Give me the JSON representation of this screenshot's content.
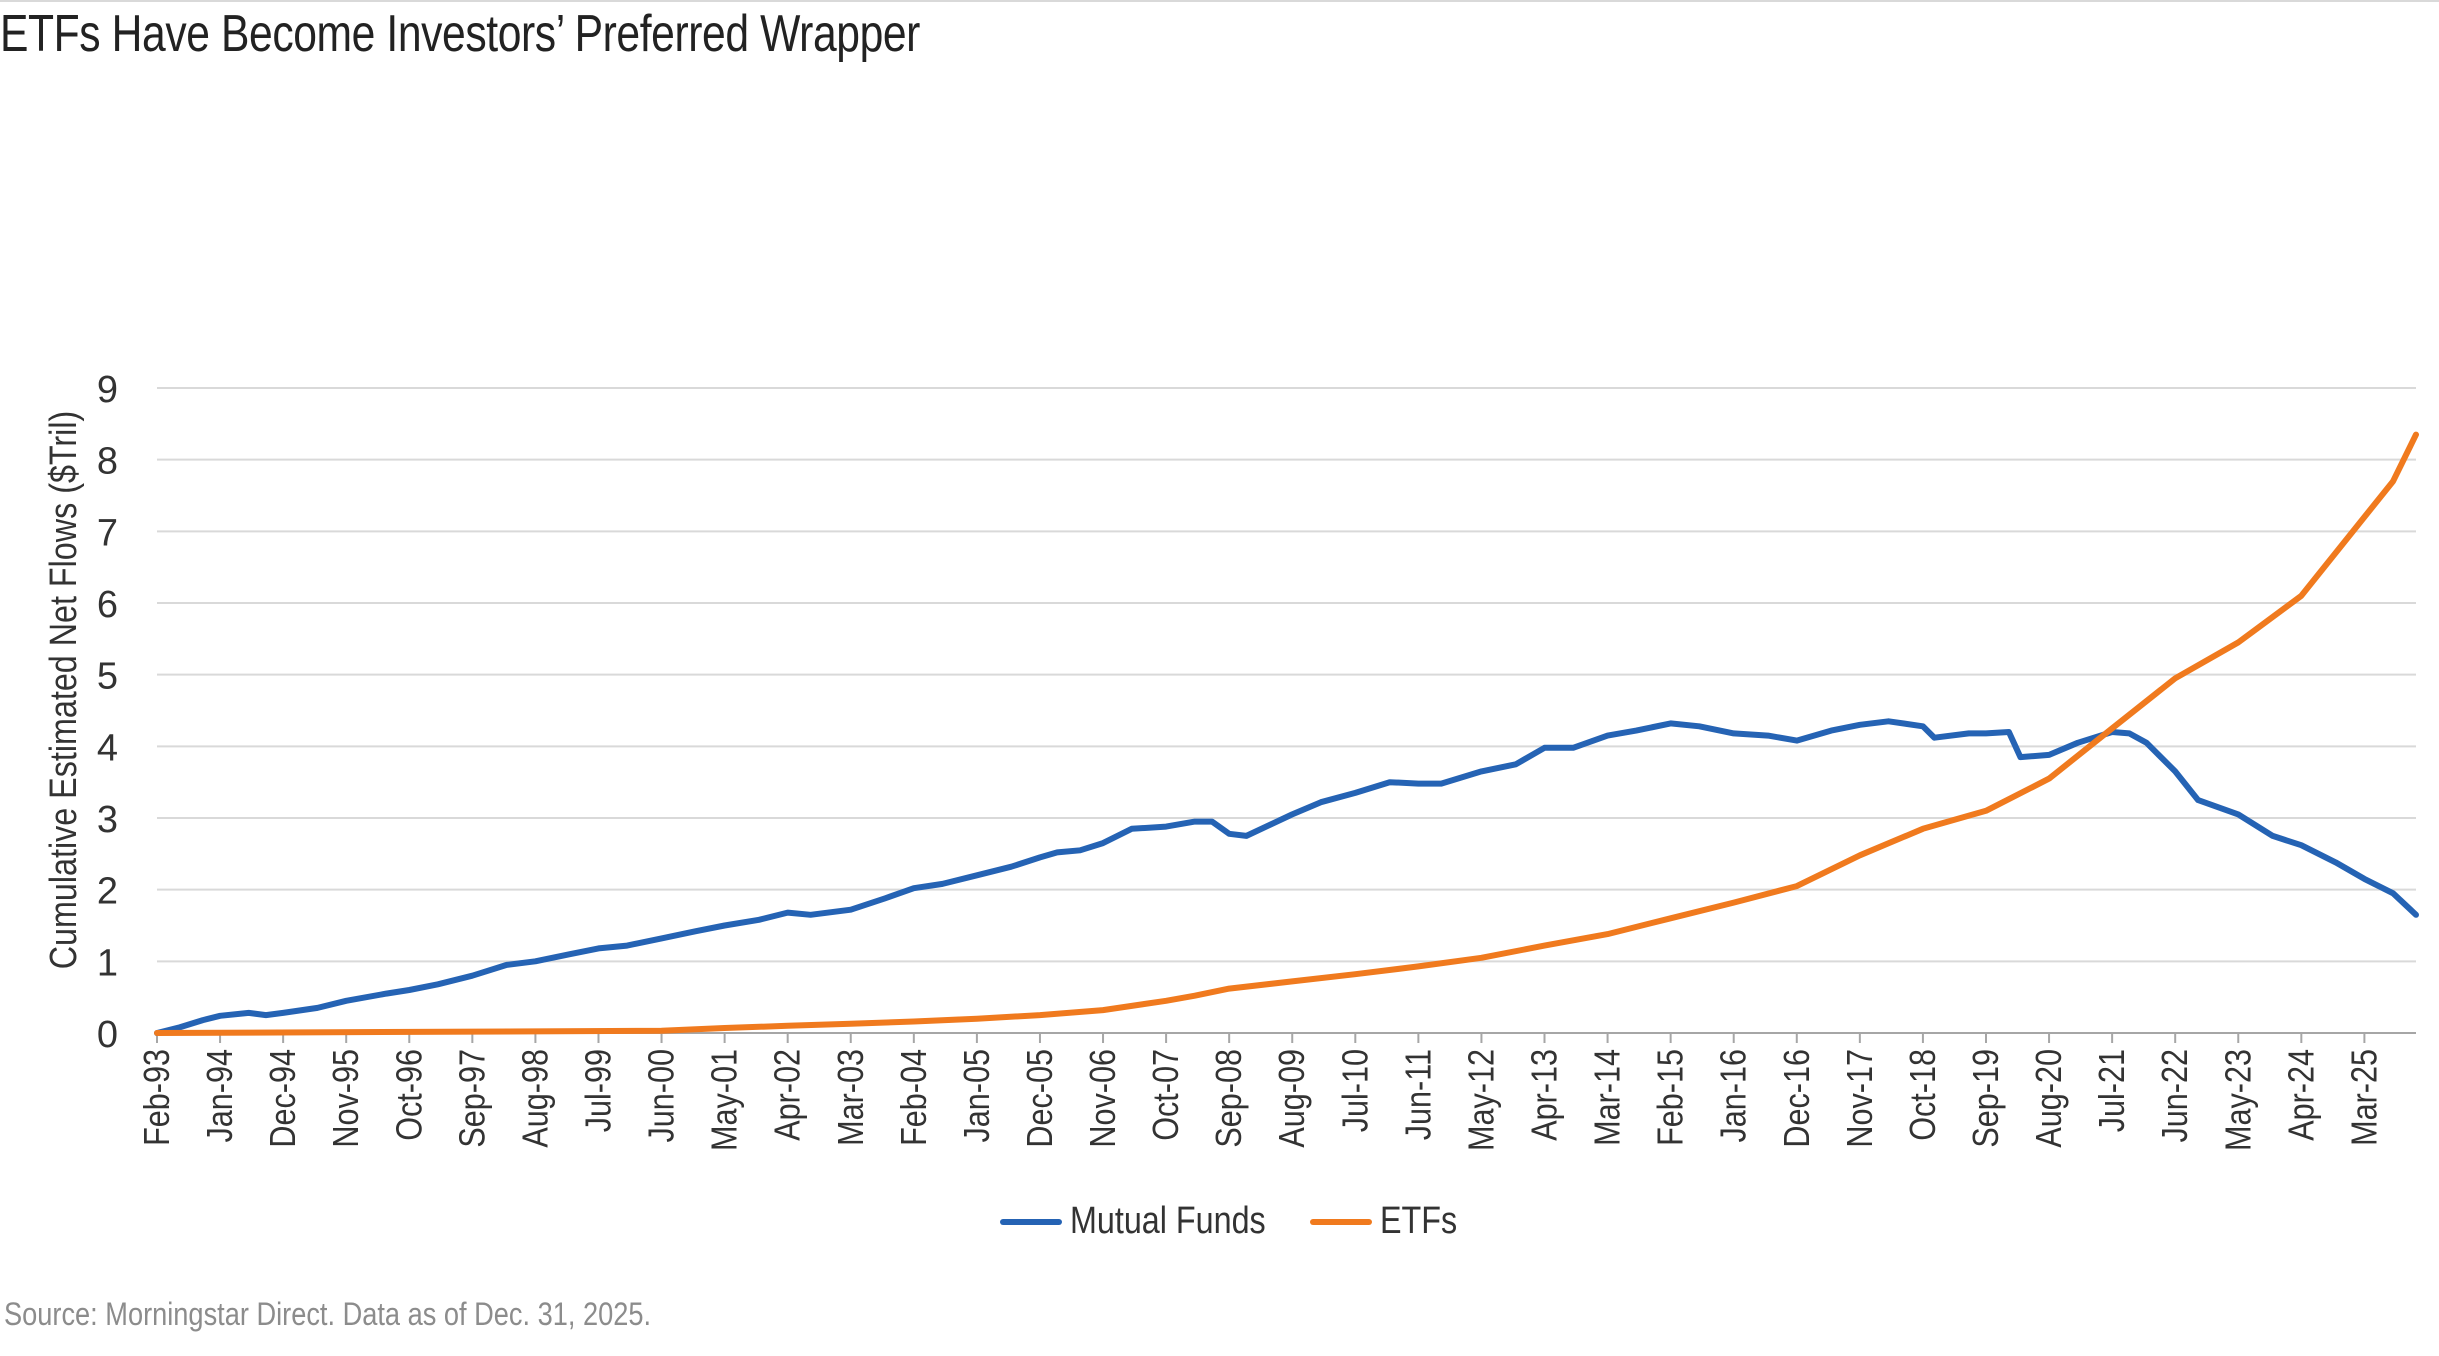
{
  "title": "ETFs Have Become Investors’ Preferred Wrapper",
  "source": "Source: Morningstar Direct. Data as of Dec. 31, 2025.",
  "colors": {
    "mutual_funds": "#2563B4",
    "etfs": "#F07A1E",
    "grid": "#d9d9d9",
    "axis": "#a6a6a6"
  },
  "chart_data": {
    "type": "line",
    "ylabel": "Cumulative Estimated Net Flows ($Tril)",
    "xlabel": "",
    "ylim": [
      0,
      9
    ],
    "yticks": [
      0,
      1,
      2,
      3,
      4,
      5,
      6,
      7,
      8,
      9
    ],
    "grid": true,
    "legend": "bottom",
    "x_tick_labels": [
      "Feb-93",
      "Jan-94",
      "Dec-94",
      "Nov-95",
      "Oct-96",
      "Sep-97",
      "Aug-98",
      "Jul-99",
      "Jun-00",
      "May-01",
      "Apr-02",
      "Mar-03",
      "Feb-04",
      "Jan-05",
      "Dec-05",
      "Nov-06",
      "Oct-07",
      "Sep-08",
      "Aug-09",
      "Jul-10",
      "Jun-11",
      "May-12",
      "Apr-13",
      "Mar-14",
      "Feb-15",
      "Jan-16",
      "Dec-16",
      "Nov-17",
      "Oct-18",
      "Sep-19",
      "Aug-20",
      "Jul-21",
      "Jun-22",
      "May-23",
      "Apr-24",
      "Mar-25"
    ],
    "x_range": [
      "Feb-93",
      "Dec-25"
    ],
    "series": [
      {
        "name": "Mutual Funds",
        "color": "#2563B4",
        "points": [
          [
            "Feb-93",
            0
          ],
          [
            "Jun-93",
            0.08
          ],
          [
            "Oct-93",
            0.18
          ],
          [
            "Jan-94",
            0.24
          ],
          [
            "Jun-94",
            0.28
          ],
          [
            "Sep-94",
            0.25
          ],
          [
            "Dec-94",
            0.28
          ],
          [
            "Jun-95",
            0.35
          ],
          [
            "Nov-95",
            0.45
          ],
          [
            "Jun-96",
            0.55
          ],
          [
            "Oct-96",
            0.6
          ],
          [
            "Mar-97",
            0.68
          ],
          [
            "Sep-97",
            0.8
          ],
          [
            "Mar-98",
            0.95
          ],
          [
            "Aug-98",
            1.0
          ],
          [
            "Feb-99",
            1.1
          ],
          [
            "Jul-99",
            1.18
          ],
          [
            "Dec-99",
            1.22
          ],
          [
            "Jun-00",
            1.32
          ],
          [
            "Dec-00",
            1.42
          ],
          [
            "May-01",
            1.5
          ],
          [
            "Nov-01",
            1.58
          ],
          [
            "Apr-02",
            1.68
          ],
          [
            "Aug-02",
            1.65
          ],
          [
            "Mar-03",
            1.72
          ],
          [
            "Sep-03",
            1.88
          ],
          [
            "Feb-04",
            2.02
          ],
          [
            "Jul-04",
            2.08
          ],
          [
            "Jan-05",
            2.2
          ],
          [
            "Jul-05",
            2.32
          ],
          [
            "Dec-05",
            2.45
          ],
          [
            "Mar-06",
            2.52
          ],
          [
            "Jul-06",
            2.55
          ],
          [
            "Nov-06",
            2.65
          ],
          [
            "Apr-07",
            2.85
          ],
          [
            "Oct-07",
            2.88
          ],
          [
            "Mar-08",
            2.95
          ],
          [
            "Jun-08",
            2.95
          ],
          [
            "Sep-08",
            2.78
          ],
          [
            "Dec-08",
            2.75
          ],
          [
            "Aug-09",
            3.05
          ],
          [
            "Jan-10",
            3.22
          ],
          [
            "Jul-10",
            3.35
          ],
          [
            "Jan-11",
            3.5
          ],
          [
            "Jun-11",
            3.48
          ],
          [
            "Oct-11",
            3.48
          ],
          [
            "May-12",
            3.65
          ],
          [
            "Nov-12",
            3.75
          ],
          [
            "Apr-13",
            3.98
          ],
          [
            "Sep-13",
            3.98
          ],
          [
            "Mar-14",
            4.15
          ],
          [
            "Aug-14",
            4.22
          ],
          [
            "Feb-15",
            4.32
          ],
          [
            "Jul-15",
            4.28
          ],
          [
            "Jan-16",
            4.18
          ],
          [
            "Jul-16",
            4.15
          ],
          [
            "Dec-16",
            4.08
          ],
          [
            "Jun-17",
            4.22
          ],
          [
            "Nov-17",
            4.3
          ],
          [
            "Apr-18",
            4.35
          ],
          [
            "Oct-18",
            4.28
          ],
          [
            "Dec-18",
            4.12
          ],
          [
            "Jun-19",
            4.18
          ],
          [
            "Sep-19",
            4.18
          ],
          [
            "Jan-20",
            4.2
          ],
          [
            "Mar-20",
            3.85
          ],
          [
            "Aug-20",
            3.88
          ],
          [
            "Jan-21",
            4.05
          ],
          [
            "Jul-21",
            4.2
          ],
          [
            "Oct-21",
            4.18
          ],
          [
            "Jan-22",
            4.05
          ],
          [
            "Jun-22",
            3.65
          ],
          [
            "Oct-22",
            3.25
          ],
          [
            "May-23",
            3.05
          ],
          [
            "Nov-23",
            2.75
          ],
          [
            "Apr-24",
            2.62
          ],
          [
            "Oct-24",
            2.38
          ],
          [
            "Mar-25",
            2.15
          ],
          [
            "Aug-25",
            1.95
          ],
          [
            "Dec-25",
            1.65
          ]
        ]
      },
      {
        "name": "ETFs",
        "color": "#F07A1E",
        "points": [
          [
            "Feb-93",
            0
          ],
          [
            "Jun-00",
            0.03
          ],
          [
            "May-01",
            0.07
          ],
          [
            "Apr-02",
            0.1
          ],
          [
            "Mar-03",
            0.13
          ],
          [
            "Feb-04",
            0.16
          ],
          [
            "Jan-05",
            0.2
          ],
          [
            "Dec-05",
            0.25
          ],
          [
            "Nov-06",
            0.32
          ],
          [
            "Oct-07",
            0.45
          ],
          [
            "Mar-08",
            0.52
          ],
          [
            "Sep-08",
            0.62
          ],
          [
            "Aug-09",
            0.72
          ],
          [
            "Jul-10",
            0.82
          ],
          [
            "Jun-11",
            0.93
          ],
          [
            "May-12",
            1.05
          ],
          [
            "Apr-13",
            1.22
          ],
          [
            "Mar-14",
            1.38
          ],
          [
            "Feb-15",
            1.6
          ],
          [
            "Jan-16",
            1.82
          ],
          [
            "Dec-16",
            2.05
          ],
          [
            "Nov-17",
            2.48
          ],
          [
            "Oct-18",
            2.85
          ],
          [
            "Sep-19",
            3.1
          ],
          [
            "Aug-20",
            3.55
          ],
          [
            "Jul-21",
            4.25
          ],
          [
            "Jun-22",
            4.95
          ],
          [
            "May-23",
            5.45
          ],
          [
            "Apr-24",
            6.1
          ],
          [
            "Mar-25",
            7.2
          ],
          [
            "Aug-25",
            7.7
          ],
          [
            "Dec-25",
            8.35
          ]
        ]
      }
    ]
  },
  "legend": {
    "items": [
      {
        "label": "Mutual Funds"
      },
      {
        "label": "ETFs"
      }
    ]
  }
}
